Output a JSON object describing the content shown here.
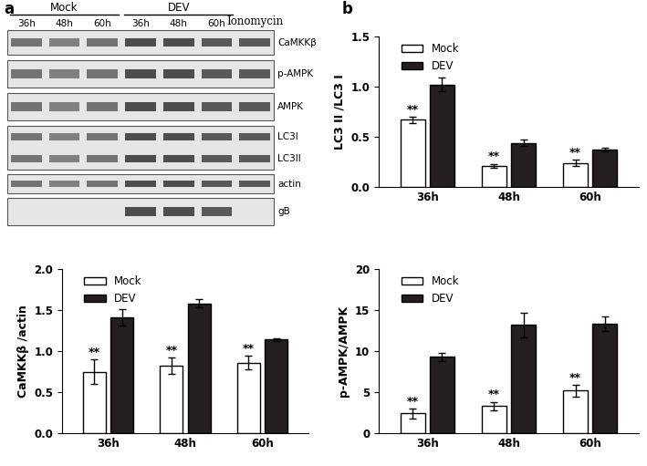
{
  "panel_labels": [
    "a",
    "b"
  ],
  "blot": {
    "groups": [
      {
        "name": "Mock",
        "lanes": [
          "36h",
          "48h",
          "60h"
        ]
      },
      {
        "name": "DEV",
        "lanes": [
          "36h",
          "48h",
          "60h"
        ]
      },
      {
        "name": "Ionomycin",
        "lanes": [
          null
        ]
      }
    ],
    "rows": [
      {
        "labels": [
          "CaMKKβ"
        ]
      },
      {
        "labels": [
          "p-AMPK"
        ]
      },
      {
        "labels": [
          "AMPK"
        ]
      },
      {
        "labels": [
          "LC3I",
          "LC3II"
        ]
      },
      {
        "labels": [
          "actin"
        ]
      },
      {
        "labels": [
          "gB"
        ],
        "present_in": [
          "DEV"
        ]
      }
    ]
  },
  "chart_data": [
    {
      "type": "bar",
      "y_label": "LC3 II /LC3 I",
      "categories": [
        "36h",
        "48h",
        "60h"
      ],
      "series": [
        {
          "name": "Mock",
          "color": "#ffffff",
          "values": [
            0.67,
            0.21,
            0.24
          ],
          "errors": [
            0.03,
            0.02,
            0.03
          ]
        },
        {
          "name": "DEV",
          "color": "#231f20",
          "values": [
            1.02,
            0.44,
            0.37
          ],
          "errors": [
            0.07,
            0.03,
            0.02
          ]
        }
      ],
      "annotations": [
        {
          "text": "**",
          "category": "36h",
          "series": "Mock"
        },
        {
          "text": "**",
          "category": "48h",
          "series": "Mock"
        },
        {
          "text": "**",
          "category": "60h",
          "series": "Mock"
        }
      ],
      "ylim": [
        0,
        1.5
      ],
      "yticks": [
        {
          "value": 0,
          "label": "0.0"
        },
        0.5,
        {
          "value": 1,
          "label": "1.0"
        },
        1.5
      ],
      "legend": "upper left"
    },
    {
      "type": "bar",
      "y_label": "CaMKKβ /actin",
      "categories": [
        "36h",
        "48h",
        "60h"
      ],
      "series": [
        {
          "name": "Mock",
          "color": "#ffffff",
          "values": [
            0.75,
            0.82,
            0.86
          ],
          "errors": [
            0.15,
            0.1,
            0.08
          ]
        },
        {
          "name": "DEV",
          "color": "#231f20",
          "values": [
            1.41,
            1.58,
            1.14
          ],
          "errors": [
            0.1,
            0.05,
            0.02
          ]
        }
      ],
      "annotations": [
        {
          "text": "**",
          "category": "36h",
          "series": "Mock"
        },
        {
          "text": "**",
          "category": "48h",
          "series": "Mock"
        },
        {
          "text": "**",
          "category": "60h",
          "series": "Mock"
        }
      ],
      "ylim": [
        0,
        2.0
      ],
      "yticks": [
        {
          "value": 0,
          "label": "0.0"
        },
        0.5,
        {
          "value": 1,
          "label": "1.0"
        },
        1.5,
        {
          "value": 2,
          "label": "2.0"
        }
      ],
      "legend": "upper left"
    },
    {
      "type": "bar",
      "y_label": "p-AMPK/AMPK",
      "categories": [
        "36h",
        "48h",
        "60h"
      ],
      "series": [
        {
          "name": "Mock",
          "color": "#ffffff",
          "values": [
            2.4,
            3.3,
            5.2
          ],
          "errors": [
            0.6,
            0.5,
            0.7
          ]
        },
        {
          "name": "DEV",
          "color": "#231f20",
          "values": [
            9.3,
            13.2,
            13.3
          ],
          "errors": [
            0.5,
            1.5,
            0.9
          ]
        }
      ],
      "annotations": [
        {
          "text": "**",
          "category": "36h",
          "series": "Mock"
        },
        {
          "text": "**",
          "category": "48h",
          "series": "Mock"
        },
        {
          "text": "**",
          "category": "60h",
          "series": "Mock"
        }
      ],
      "ylim": [
        0,
        20
      ],
      "yticks": [
        0,
        5,
        10,
        15,
        20
      ],
      "legend": "upper left"
    }
  ]
}
